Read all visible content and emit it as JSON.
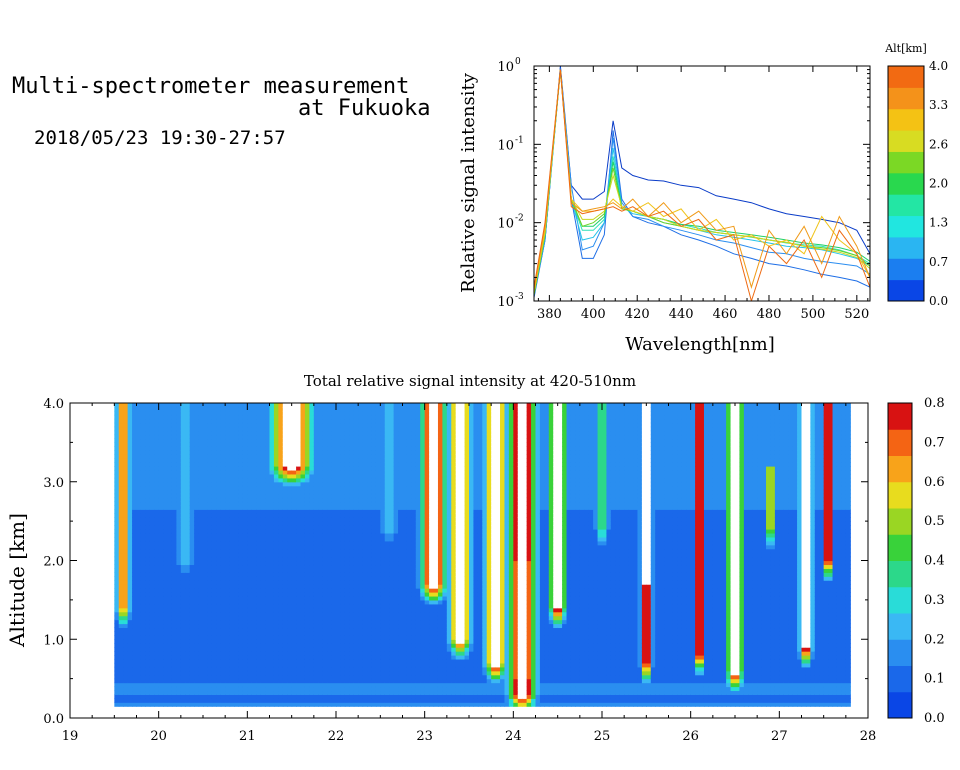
{
  "header": {
    "line1": "Multi-spectrometer measurement",
    "line2": "at Fukuoka",
    "line3": "2018/05/23 19:30-27:57"
  },
  "colors": {
    "spectrum_lines": [
      "#0a3cc8",
      "#1e6ee6",
      "#2b8ef0",
      "#25c3e8",
      "#2fe0b8",
      "#1fd06a",
      "#6ad421",
      "#c8d821",
      "#f0c41a",
      "#f09a18",
      "#ee6a12"
    ],
    "colorbar_alt": [
      "#0a46e6",
      "#1b7ef0",
      "#2ab5f2",
      "#21e6e0",
      "#23e6a4",
      "#29d84e",
      "#7bd825",
      "#d8dc22",
      "#f4c214",
      "#f4921a",
      "#f26a12"
    ],
    "heatmap": [
      "#0a46e6",
      "#1a68ea",
      "#2a8ef0",
      "#3ab8f4",
      "#29dcd8",
      "#2cd88a",
      "#39d23a",
      "#9ad623",
      "#e8dc1e",
      "#f8a31a",
      "#f46414",
      "#d81212"
    ]
  },
  "chart_data": [
    {
      "type": "line",
      "xlabel": "Wavelength[nm]",
      "ylabel": "Relative signal intensity",
      "xlim": [
        373,
        526
      ],
      "ylim": [
        0.001,
        1
      ],
      "yscale": "log",
      "x_ticks": [
        380,
        400,
        420,
        440,
        460,
        480,
        500,
        520
      ],
      "x_tick_labels": [
        "380",
        "400",
        "420",
        "440",
        "460",
        "480",
        "500",
        "520"
      ],
      "y_ticks": [
        0.001,
        0.01,
        0.1,
        1
      ],
      "y_tick_base": "10",
      "y_tick_exponents": [
        "-3",
        "-2",
        "-1",
        "0"
      ],
      "colorbar": {
        "label": "Alt[km]",
        "ticks": [
          "0.0",
          "0.7",
          "1.3",
          "2.0",
          "2.6",
          "3.3",
          "4.0"
        ],
        "range": [
          0,
          4
        ]
      },
      "x": [
        373,
        378,
        385,
        390,
        395,
        400,
        405,
        409,
        413,
        418,
        425,
        432,
        440,
        448,
        456,
        464,
        472,
        480,
        488,
        496,
        504,
        512,
        520,
        526
      ],
      "series": [
        {
          "values": [
            0.0012,
            0.006,
            1.0,
            0.03,
            0.02,
            0.02,
            0.025,
            0.2,
            0.05,
            0.04,
            0.035,
            0.034,
            0.03,
            0.028,
            0.022,
            0.02,
            0.018,
            0.015,
            0.013,
            0.012,
            0.011,
            0.01,
            0.008,
            0.004
          ]
        },
        {
          "values": [
            0.0011,
            0.006,
            0.95,
            0.02,
            0.0035,
            0.0035,
            0.007,
            0.15,
            0.02,
            0.012,
            0.01,
            0.009,
            0.007,
            0.006,
            0.005,
            0.004,
            0.0035,
            0.003,
            0.0028,
            0.0025,
            0.0022,
            0.002,
            0.0018,
            0.0015
          ]
        },
        {
          "values": [
            0.0012,
            0.006,
            0.9,
            0.03,
            0.0045,
            0.005,
            0.01,
            0.12,
            0.018,
            0.012,
            0.011,
            0.009,
            0.008,
            0.007,
            0.006,
            0.0055,
            0.0048,
            0.0042,
            0.004,
            0.0035,
            0.0032,
            0.003,
            0.0028,
            0.0022
          ]
        },
        {
          "values": [
            0.0012,
            0.0065,
            0.9,
            0.02,
            0.006,
            0.0065,
            0.01,
            0.09,
            0.016,
            0.013,
            0.012,
            0.01,
            0.009,
            0.008,
            0.007,
            0.0065,
            0.006,
            0.0055,
            0.005,
            0.0048,
            0.0045,
            0.004,
            0.0035,
            0.0028
          ]
        },
        {
          "values": [
            0.0012,
            0.007,
            0.9,
            0.02,
            0.008,
            0.008,
            0.011,
            0.07,
            0.016,
            0.014,
            0.012,
            0.011,
            0.0095,
            0.0085,
            0.0075,
            0.007,
            0.0065,
            0.006,
            0.0055,
            0.0052,
            0.005,
            0.0045,
            0.0038,
            0.003
          ]
        },
        {
          "values": [
            0.0012,
            0.007,
            0.9,
            0.02,
            0.009,
            0.009,
            0.012,
            0.06,
            0.016,
            0.014,
            0.012,
            0.011,
            0.0095,
            0.009,
            0.008,
            0.0075,
            0.007,
            0.0065,
            0.006,
            0.0055,
            0.0052,
            0.0048,
            0.0042,
            0.0032
          ]
        },
        {
          "values": [
            0.0012,
            0.007,
            0.9,
            0.02,
            0.009,
            0.01,
            0.013,
            0.05,
            0.015,
            0.014,
            0.012,
            0.01,
            0.009,
            0.008,
            0.0075,
            0.007,
            0.0066,
            0.006,
            0.0056,
            0.005,
            0.0048,
            0.0044,
            0.0038,
            0.0028
          ]
        },
        {
          "values": [
            0.0013,
            0.0075,
            0.9,
            0.02,
            0.011,
            0.011,
            0.014,
            0.04,
            0.016,
            0.014,
            0.012,
            0.011,
            0.009,
            0.008,
            0.0075,
            0.007,
            0.0066,
            0.006,
            0.0056,
            0.005,
            0.0046,
            0.0042,
            0.0036,
            0.0026
          ]
        },
        {
          "values": [
            0.0013,
            0.008,
            0.9,
            0.02,
            0.014,
            0.014,
            0.015,
            0.02,
            0.016,
            0.014,
            0.018,
            0.012,
            0.015,
            0.008,
            0.011,
            0.006,
            0.007,
            0.005,
            0.006,
            0.004,
            0.012,
            0.006,
            0.004,
            0.002
          ]
        },
        {
          "values": [
            0.0014,
            0.009,
            0.9,
            0.018,
            0.014,
            0.015,
            0.016,
            0.018,
            0.015,
            0.02,
            0.012,
            0.018,
            0.01,
            0.014,
            0.008,
            0.009,
            0.0015,
            0.008,
            0.004,
            0.009,
            0.003,
            0.012,
            0.005,
            0.002
          ]
        },
        {
          "values": [
            0.0015,
            0.01,
            0.9,
            0.016,
            0.013,
            0.014,
            0.015,
            0.016,
            0.014,
            0.016,
            0.012,
            0.014,
            0.009,
            0.011,
            0.006,
            0.007,
            0.001,
            0.005,
            0.003,
            0.006,
            0.002,
            0.008,
            0.004,
            0.0015
          ]
        }
      ]
    },
    {
      "type": "heatmap",
      "title": "Total relative signal intensity at 420-510nm",
      "xlabel": "",
      "ylabel": "Altitude [km]",
      "xlim": [
        19,
        28
      ],
      "ylim": [
        0,
        4
      ],
      "x_ticks": [
        "19",
        "20",
        "21",
        "22",
        "23",
        "24",
        "25",
        "26",
        "27",
        "28"
      ],
      "y_ticks": [
        "0.0",
        "1.0",
        "2.0",
        "3.0",
        "4.0"
      ],
      "data_x_range": [
        19.5,
        27.8
      ],
      "colorbar": {
        "ticks": [
          "0.0",
          "0.1",
          "0.2",
          "0.3",
          "0.4",
          "0.5",
          "0.6",
          "0.7",
          "0.8"
        ],
        "range": [
          0,
          0.8
        ]
      },
      "background_value": 0.07,
      "layer_profile": [
        {
          "alt": 0.15,
          "value": 0.22
        },
        {
          "alt": 0.25,
          "value": 0.05
        },
        {
          "alt": 0.3,
          "value": 0.2
        },
        {
          "alt": 0.6,
          "value": 0.08
        },
        {
          "alt": 1.2,
          "value": 0.1
        },
        {
          "alt": 2.0,
          "value": 0.12
        },
        {
          "alt": 3.0,
          "value": 0.14
        },
        {
          "alt": 4.0,
          "value": 0.16
        }
      ],
      "cloud_features": [
        {
          "time": 19.6,
          "bottom": 1.4,
          "top": 4.0,
          "width": 0.1,
          "peak": 0.7
        },
        {
          "time": 20.3,
          "bottom": 2.0,
          "top": 4.0,
          "width": 0.15,
          "peak": 0.2
        },
        {
          "time": 21.5,
          "bottom": 3.2,
          "top": 4.0,
          "width": 0.3,
          "peak": 0.9
        },
        {
          "time": 22.6,
          "bottom": 2.4,
          "top": 4.0,
          "width": 0.15,
          "peak": 0.2
        },
        {
          "time": 23.1,
          "bottom": 1.7,
          "top": 4.0,
          "width": 0.18,
          "peak": 0.95
        },
        {
          "time": 23.4,
          "bottom": 1.0,
          "top": 4.0,
          "width": 0.15,
          "peak": 0.9
        },
        {
          "time": 23.8,
          "bottom": 0.7,
          "top": 4.0,
          "width": 0.15,
          "peak": 0.95
        },
        {
          "time": 24.1,
          "bottom": 0.3,
          "top": 4.0,
          "width": 0.2,
          "peak": 0.95
        },
        {
          "time": 24.5,
          "bottom": 1.4,
          "top": 4.0,
          "width": 0.12,
          "peak": 0.9
        },
        {
          "time": 25.0,
          "bottom": 2.4,
          "top": 4.0,
          "width": 0.1,
          "peak": 0.35
        },
        {
          "time": 25.5,
          "bottom": 0.7,
          "top": 4.0,
          "width": 0.08,
          "peak": 0.95
        },
        {
          "time": 26.1,
          "bottom": 0.8,
          "top": 4.0,
          "width": 0.07,
          "peak": 0.95
        },
        {
          "time": 26.5,
          "bottom": 0.6,
          "top": 4.0,
          "width": 0.12,
          "peak": 0.95
        },
        {
          "time": 26.9,
          "bottom": 2.4,
          "top": 3.2,
          "width": 0.05,
          "peak": 0.8
        },
        {
          "time": 27.3,
          "bottom": 0.9,
          "top": 4.0,
          "width": 0.09,
          "peak": 0.95
        },
        {
          "time": 27.55,
          "bottom": 2.0,
          "top": 4.0,
          "width": 0.07,
          "peak": 0.95
        }
      ]
    }
  ]
}
